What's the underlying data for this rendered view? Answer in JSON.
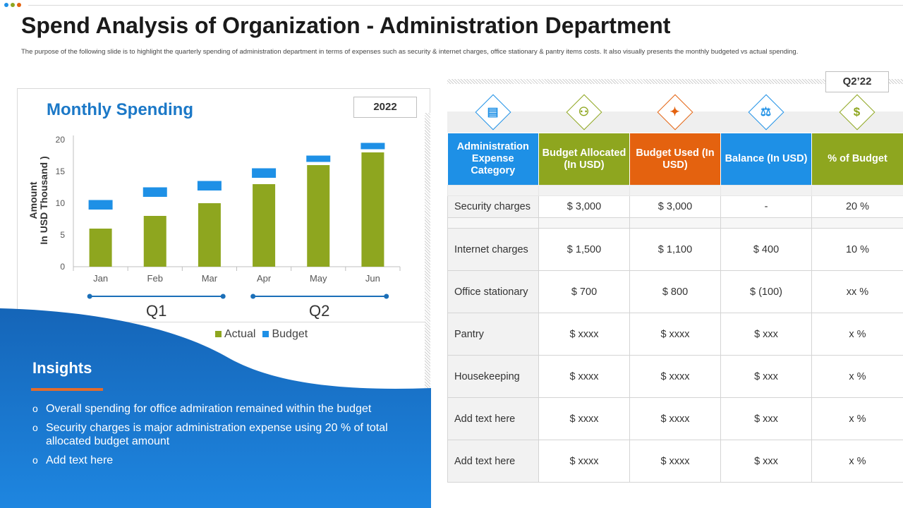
{
  "header": {
    "title": "Spend Analysis of Organization - Administration Department",
    "description": "The purpose of the following slide is to highlight the quarterly spending of administration department in terms of expenses such as security & internet charges, office stationary & pantry items costs. It also visually presents the monthly budgeted vs actual spending."
  },
  "colors": {
    "actual": "#8ea61f",
    "budget": "#1e90e6",
    "title_blue": "#1b78c7",
    "wave_blue": "#1565b8"
  },
  "chart_data": {
    "type": "bar",
    "title": "Monthly Spending",
    "year": "2022",
    "categories": [
      "Jan",
      "Feb",
      "Mar",
      "Apr",
      "May",
      "Jun"
    ],
    "series": [
      {
        "name": "Actual",
        "values": [
          6,
          8,
          10,
          13,
          16,
          18
        ]
      },
      {
        "name": "Budget",
        "values": [
          9,
          11,
          12,
          14,
          16.5,
          18.5
        ],
        "band_top": [
          10.5,
          12.5,
          13.5,
          15.5,
          17.5,
          19.5
        ]
      }
    ],
    "ylabel_line1": "Amount",
    "ylabel_line2": "In USD Thousand )",
    "ylim": [
      0,
      20
    ],
    "yticks": [
      "0",
      "5",
      "10",
      "15",
      "20"
    ],
    "quarters": [
      "Q1",
      "Q2"
    ],
    "legend": [
      "Actual",
      "Budget"
    ]
  },
  "insights": {
    "title": "Insights",
    "items": [
      "Overall spending for office admiration remained within the budget",
      "Security charges is major administration expense using 20 % of total allocated budget amount",
      "Add text here"
    ]
  },
  "table": {
    "quarter": "Q2’22",
    "headers": [
      {
        "label": "Administration Expense Category",
        "color": "#1e90e6"
      },
      {
        "label": "Budget Allocated (In USD)",
        "color": "#8ea61f"
      },
      {
        "label": "Budget Used (In USD)",
        "color": "#e4620f"
      },
      {
        "label": "Balance (In USD)",
        "color": "#1e90e6"
      },
      {
        "label": "% of Budget",
        "color": "#8ea61f"
      }
    ],
    "icons": [
      {
        "name": "document-icon",
        "color": "#1e90e6"
      },
      {
        "name": "team-icon",
        "color": "#8ea61f"
      },
      {
        "name": "handshake-icon",
        "color": "#e4620f"
      },
      {
        "name": "people-balance-icon",
        "color": "#1e90e6"
      },
      {
        "name": "money-bag-icon",
        "color": "#8ea61f"
      }
    ],
    "rows": [
      [
        "Security charges",
        "$ 3,000",
        "$ 3,000",
        "-",
        "20 %"
      ],
      [
        "Internet charges",
        "$ 1,500",
        "$ 1,100",
        "$ 400",
        "10 %"
      ],
      [
        "Office stationary",
        "$ 700",
        "$ 800",
        "$ (100)",
        "xx %"
      ],
      [
        "Pantry",
        "$ xxxx",
        "$ xxxx",
        "$ xxx",
        "x %"
      ],
      [
        "Housekeeping",
        "$ xxxx",
        "$ xxxx",
        "$ xxx",
        "x %"
      ],
      [
        "Add text here",
        "$ xxxx",
        "$ xxxx",
        "$ xxx",
        "x %"
      ],
      [
        "Add text here",
        "$ xxxx",
        "$ xxxx",
        "$ xxx",
        "x %"
      ]
    ]
  }
}
